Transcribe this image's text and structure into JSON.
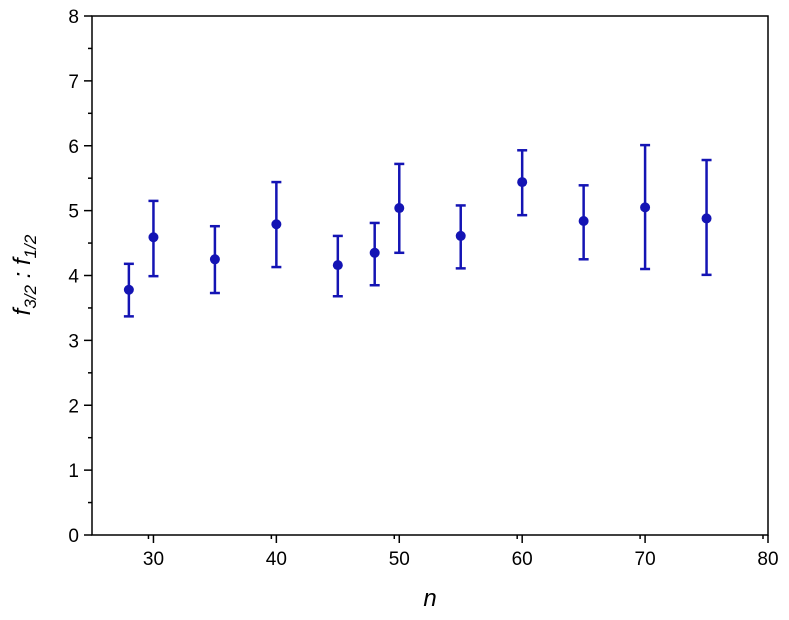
{
  "chart_data": {
    "type": "scatter",
    "xlabel": "n",
    "ylabel": [
      "f",
      "3/2",
      " : f",
      "1/2"
    ],
    "series": [
      {
        "color": "#1414b4",
        "x": [
          28,
          30,
          35,
          40,
          45,
          48,
          50,
          55,
          60,
          65,
          70,
          75
        ],
        "values": [
          3.78,
          4.59,
          4.25,
          4.79,
          4.16,
          4.35,
          5.04,
          4.61,
          5.44,
          4.84,
          5.05,
          4.88
        ],
        "lower": [
          3.37,
          3.99,
          3.73,
          4.13,
          3.68,
          3.85,
          4.35,
          4.11,
          4.93,
          4.25,
          4.1,
          4.01
        ],
        "upper": [
          4.18,
          5.15,
          4.76,
          5.44,
          4.61,
          4.81,
          5.72,
          5.08,
          5.93,
          5.39,
          6.01,
          5.78
        ]
      }
    ],
    "xlim": [
      25,
      80
    ],
    "xticks": [
      30,
      40,
      50,
      60,
      70,
      80
    ],
    "ylim": [
      0,
      8
    ],
    "yticks": [
      0,
      1,
      2,
      3,
      4,
      5,
      6,
      7,
      8
    ],
    "grid": false
  }
}
